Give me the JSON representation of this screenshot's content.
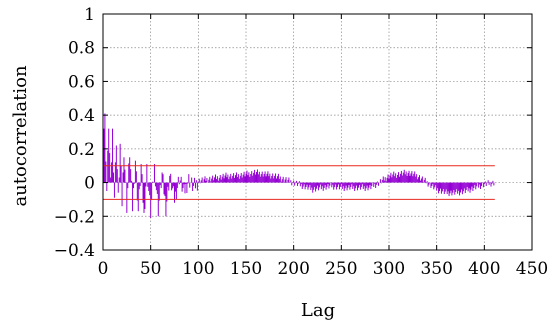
{
  "chart_data": {
    "type": "bar",
    "xlabel": "Lag",
    "ylabel": "autocorrelation",
    "xlim": [
      0,
      450
    ],
    "ylim": [
      -0.4,
      1
    ],
    "xticks": [
      "0",
      "50",
      "100",
      "150",
      "200",
      "250",
      "300",
      "350",
      "400",
      "450"
    ],
    "yticks": [
      "−0.4",
      "−0.2",
      "0",
      "0.2",
      "0.4",
      "0.6",
      "0.8",
      "1"
    ],
    "grid": true,
    "bar_color": "#9400d3",
    "confidence_band": {
      "upper": 0.1,
      "lower": -0.1,
      "color": "#e8281e"
    },
    "lags": {
      "start": 0,
      "end": 411
    },
    "acf_envelope": [
      [
        0,
        1.0
      ],
      [
        1,
        0.32
      ],
      [
        2,
        0.38
      ],
      [
        4,
        -0.05
      ],
      [
        6,
        0.35
      ],
      [
        8,
        -0.02
      ],
      [
        10,
        0.3
      ],
      [
        12,
        -0.08
      ],
      [
        14,
        0.26
      ],
      [
        16,
        -0.1
      ],
      [
        18,
        0.22
      ],
      [
        20,
        -0.12
      ],
      [
        22,
        0.2
      ],
      [
        25,
        -0.14
      ],
      [
        28,
        0.18
      ],
      [
        31,
        -0.15
      ],
      [
        34,
        0.14
      ],
      [
        37,
        -0.17
      ],
      [
        40,
        0.1
      ],
      [
        43,
        -0.2
      ],
      [
        46,
        0.08
      ],
      [
        50,
        -0.18
      ],
      [
        54,
        0.09
      ],
      [
        58,
        -0.16
      ],
      [
        62,
        0.05
      ],
      [
        66,
        -0.15
      ],
      [
        70,
        0.04
      ],
      [
        75,
        -0.1
      ],
      [
        80,
        0.03
      ],
      [
        85,
        -0.06
      ],
      [
        90,
        0.02
      ],
      [
        95,
        -0.03
      ],
      [
        100,
        0.01
      ],
      [
        110,
        0.02
      ],
      [
        120,
        0.03
      ],
      [
        130,
        0.04
      ],
      [
        140,
        0.04
      ],
      [
        150,
        0.05
      ],
      [
        160,
        0.06
      ],
      [
        170,
        0.05
      ],
      [
        180,
        0.04
      ],
      [
        190,
        0.02
      ],
      [
        200,
        0.0
      ],
      [
        210,
        -0.02
      ],
      [
        220,
        -0.04
      ],
      [
        230,
        -0.03
      ],
      [
        240,
        -0.02
      ],
      [
        250,
        -0.03
      ],
      [
        260,
        -0.03
      ],
      [
        270,
        -0.03
      ],
      [
        280,
        -0.03
      ],
      [
        290,
        0.0
      ],
      [
        300,
        0.04
      ],
      [
        310,
        0.05
      ],
      [
        320,
        0.06
      ],
      [
        330,
        0.04
      ],
      [
        340,
        0.0
      ],
      [
        350,
        -0.04
      ],
      [
        360,
        -0.06
      ],
      [
        370,
        -0.06
      ],
      [
        380,
        -0.05
      ],
      [
        390,
        -0.03
      ],
      [
        400,
        -0.01
      ],
      [
        411,
        0.0
      ]
    ]
  }
}
